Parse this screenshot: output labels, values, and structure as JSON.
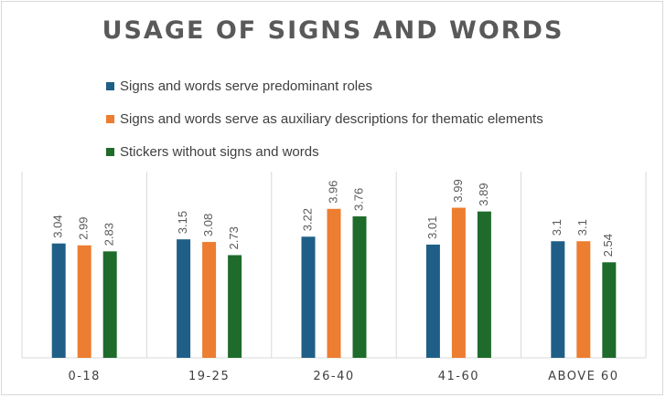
{
  "chart_data": {
    "type": "bar",
    "title": "USAGE OF SIGNS AND WORDS",
    "categories": [
      "0-18",
      "19-25",
      "26-40",
      "41-60",
      "ABOVE 60"
    ],
    "series": [
      {
        "name": "Signs and words serve predominant roles",
        "color": "#1f5f87",
        "values": [
          3.04,
          3.15,
          3.22,
          3.01,
          3.1
        ]
      },
      {
        "name": "Signs and words serve as auxiliary descriptions for thematic elements",
        "color": "#ed7d31",
        "values": [
          2.99,
          3.08,
          3.96,
          3.99,
          3.1
        ]
      },
      {
        "name": "Stickers without signs and words",
        "color": "#1e6b2b",
        "values": [
          2.83,
          2.73,
          3.76,
          3.89,
          2.54
        ]
      }
    ],
    "ylim": [
      0,
      4.95
    ],
    "data_labels": true,
    "legend_position": "top"
  }
}
